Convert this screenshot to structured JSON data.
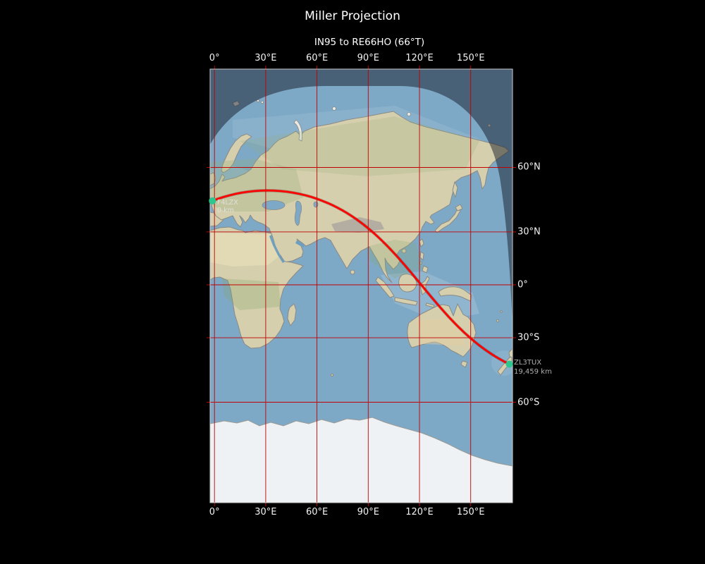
{
  "figure": {
    "title": "Miller Projection",
    "subtitle": "IN95 to RE66HO (66°T)"
  },
  "axes": {
    "lon_ticks": [
      {
        "value": 0,
        "label": "0°"
      },
      {
        "value": 30,
        "label": "30°E"
      },
      {
        "value": 60,
        "label": "60°E"
      },
      {
        "value": 90,
        "label": "90°E"
      },
      {
        "value": 120,
        "label": "120°E"
      },
      {
        "value": 150,
        "label": "150°E"
      }
    ],
    "lat_ticks": [
      {
        "value": 60,
        "label": "60°N"
      },
      {
        "value": 30,
        "label": "30°N"
      },
      {
        "value": 0,
        "label": "0°"
      },
      {
        "value": -30,
        "label": "30°S"
      },
      {
        "value": -60,
        "label": "60°S"
      }
    ]
  },
  "route": {
    "from": {
      "callsign": "F4LZX",
      "distance_label": "0 km",
      "lon": -1.2,
      "lat": 45.6
    },
    "to": {
      "callsign": "ZL3TUX",
      "distance_label": "19,459 km",
      "lon": 172.6,
      "lat": -43.4
    }
  },
  "colors": {
    "background": "#000000",
    "graticule": "#c00000",
    "route_path": "#ff0000",
    "route_shadow": "rgba(110,0,0,0.35)",
    "marker": "#2cc690",
    "frame": "#c9c9c9",
    "ocean": "#7da9c7",
    "land": "#d5cfae",
    "ice": "#eef2f4",
    "night_shade": "rgba(14,18,30,0.48)"
  }
}
